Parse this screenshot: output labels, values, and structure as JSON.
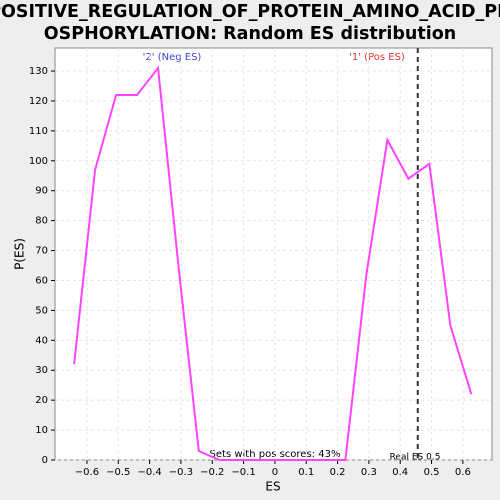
{
  "chart_data": {
    "type": "line",
    "title_lines": [
      "POSITIVE_REGULATION_OF_PROTEIN_AMINO_ACID_PH",
      "OSPHORYLATION: Random ES distribution"
    ],
    "xlabel": "ES",
    "ylabel": "P(ES)",
    "neg_label": "'2' (Neg ES)",
    "pos_label": "'1' (Pos ES)",
    "pos_scores_note": "Sets with pos scores: 43%",
    "real_es_label": "Real ES 0.5",
    "real_es": 0.456,
    "x": [
      -0.641,
      -0.574,
      -0.507,
      -0.44,
      -0.373,
      -0.307,
      -0.243,
      -0.177,
      -0.11,
      -0.043,
      0.024,
      0.091,
      0.158,
      0.225,
      0.292,
      0.359,
      0.426,
      0.493,
      0.56,
      0.627
    ],
    "series": [
      {
        "color": "#ff44ff",
        "values": [
          32,
          97,
          122,
          122,
          131,
          64,
          3,
          0,
          0,
          0,
          0,
          0,
          0,
          0,
          62,
          107,
          94,
          99,
          45,
          22
        ]
      }
    ],
    "xlim": [
      -0.702,
      0.693
    ],
    "ylim": [
      0,
      137.7
    ],
    "xticks": [
      {
        "value": -0.6,
        "label": "−0.6"
      },
      {
        "value": -0.5,
        "label": "−0.5"
      },
      {
        "value": -0.4,
        "label": "−0.4"
      },
      {
        "value": -0.3,
        "label": "−0.3"
      },
      {
        "value": -0.2,
        "label": "−0.2"
      },
      {
        "value": -0.1,
        "label": "−0.1"
      },
      0,
      0.1,
      0.2,
      0.3,
      0.4,
      0.5,
      0.6
    ],
    "yticks": [
      0,
      10,
      20,
      30,
      40,
      50,
      60,
      70,
      80,
      90,
      100,
      110,
      120,
      130
    ],
    "grid": true
  }
}
